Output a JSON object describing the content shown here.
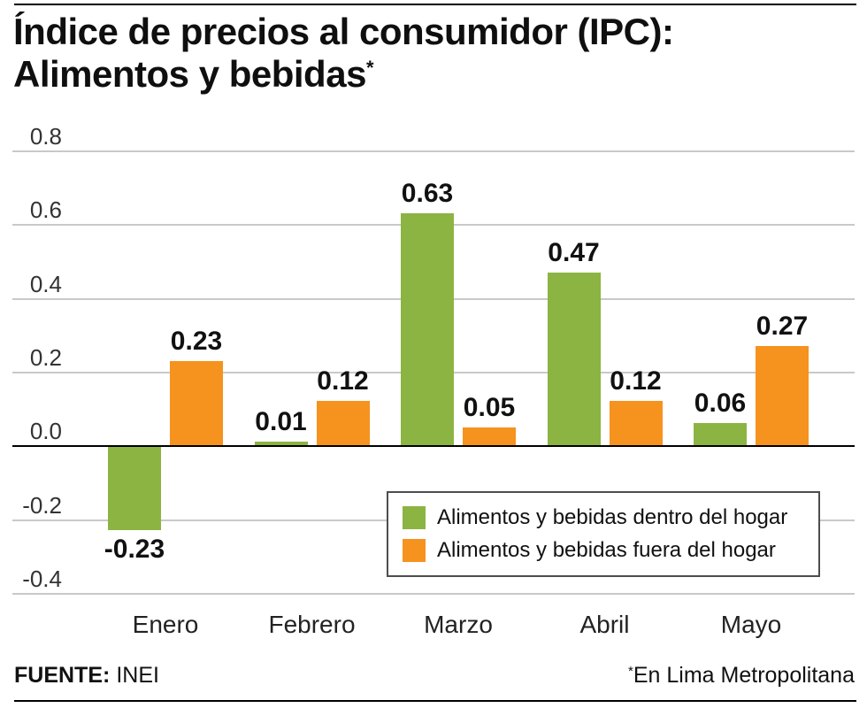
{
  "header": {
    "title_line1": "Índice de precios al consumidor (IPC):",
    "title_line2": "Alimentos y bebidas",
    "title_asterisk": "*"
  },
  "chart_data": {
    "type": "bar",
    "title": "Índice de precios al consumidor (IPC): Alimentos y bebidas",
    "note": "En Lima Metropolitana",
    "categories": [
      "Enero",
      "Febrero",
      "Marzo",
      "Abril",
      "Mayo"
    ],
    "series": [
      {
        "name": "Alimentos y bebidas dentro del hogar",
        "color": "#8CB442",
        "values": [
          -0.23,
          0.01,
          0.63,
          0.47,
          0.06
        ]
      },
      {
        "name": "Alimentos y bebidas fuera del hogar",
        "color": "#F6921E",
        "values": [
          0.23,
          0.12,
          0.05,
          0.12,
          0.27
        ]
      }
    ],
    "xlabel": "",
    "ylabel": "",
    "ylim": [
      -0.4,
      0.8
    ],
    "yticks": [
      0.8,
      0.6,
      0.4,
      0.2,
      0.0,
      -0.2,
      -0.4
    ],
    "grid": true,
    "legend_position": "inside-bottom-right"
  },
  "legend": {
    "items": [
      {
        "label": "Alimentos y bebidas dentro del hogar",
        "color": "#8CB442"
      },
      {
        "label": "Alimentos y bebidas fuera del hogar",
        "color": "#F6921E"
      }
    ]
  },
  "footer": {
    "source_label": "FUENTE:",
    "source_value": "INEI",
    "note_asterisk": "*",
    "note": "En Lima Metropolitana"
  }
}
